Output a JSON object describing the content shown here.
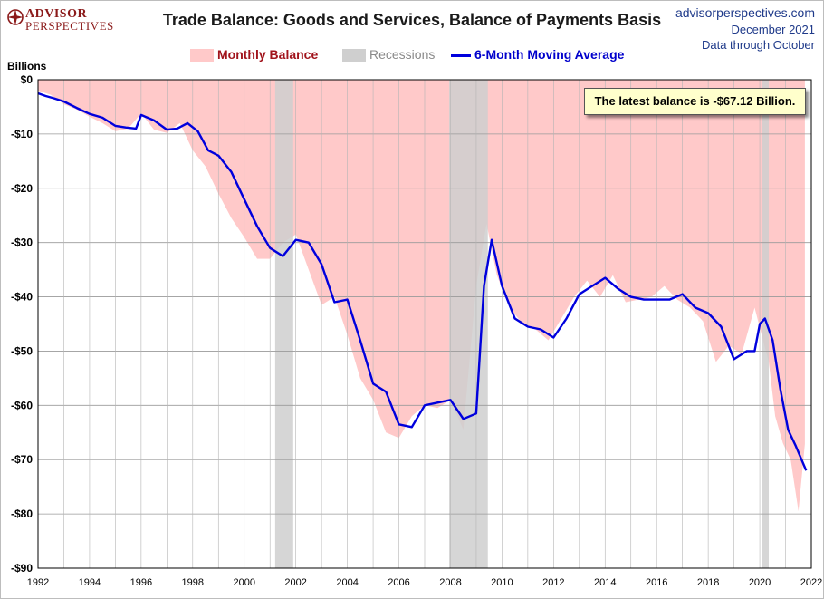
{
  "header": {
    "logo_line1": "ADVISOR",
    "logo_line2": "PERSPECTIVES",
    "title": "Trade Balance: Goods and Services, Balance of Payments Basis",
    "site": "advisorperspectives.com",
    "date": "December 2021",
    "data_through": "Data through October"
  },
  "legend": {
    "monthly": "Monthly Balance",
    "recessions": "Recessions",
    "moving_average": "6-Month Moving Average"
  },
  "callout": "The latest balance is -$67.12 Billion.",
  "colors": {
    "monthly_fill": "#ffc9c9",
    "recession_fill": "#cfcfcf",
    "moving_average": "#0000dd",
    "title": "#1a1a1a",
    "header_blue": "#1f3a8a",
    "logo_red": "#8b1a1a"
  },
  "chart_data": {
    "type": "area",
    "ylabel": "Billions",
    "xlim": [
      1992,
      2022
    ],
    "ylim": [
      -90,
      0
    ],
    "yticks": [
      0,
      -10,
      -20,
      -30,
      -40,
      -50,
      -60,
      -70,
      -80,
      -90
    ],
    "ytick_labels": [
      "$0",
      "-$10",
      "-$20",
      "-$30",
      "-$40",
      "-$50",
      "-$60",
      "-$70",
      "-$80",
      "-$90"
    ],
    "xticks": [
      1992,
      1994,
      1996,
      1998,
      2000,
      2002,
      2004,
      2006,
      2008,
      2010,
      2012,
      2014,
      2016,
      2018,
      2020,
      2022
    ],
    "grid": true,
    "recessions": [
      [
        2001.2,
        2001.9
      ],
      [
        2007.95,
        2009.45
      ],
      [
        2020.1,
        2020.35
      ]
    ],
    "series": [
      {
        "name": "Monthly Balance",
        "x": [
          1992.0,
          1992.5,
          1993.0,
          1993.5,
          1994.0,
          1994.5,
          1995.0,
          1995.5,
          1996.0,
          1996.5,
          1997.0,
          1997.5,
          1998.0,
          1998.5,
          1999.0,
          1999.5,
          2000.0,
          2000.5,
          2001.0,
          2001.5,
          2002.0,
          2002.5,
          2003.0,
          2003.5,
          2004.0,
          2004.5,
          2005.0,
          2005.5,
          2006.0,
          2006.5,
          2007.0,
          2007.5,
          2008.0,
          2008.5,
          2009.0,
          2009.4,
          2009.8,
          2010.3,
          2010.8,
          2011.3,
          2011.8,
          2012.3,
          2012.8,
          2013.3,
          2013.8,
          2014.3,
          2014.8,
          2015.3,
          2015.8,
          2016.3,
          2016.8,
          2017.3,
          2017.8,
          2018.3,
          2018.8,
          2019.3,
          2019.8,
          2020.1,
          2020.35,
          2020.6,
          2020.9,
          2021.2,
          2021.5,
          2021.75
        ],
        "values": [
          -2.0,
          -2.8,
          -4.5,
          -5.5,
          -6.8,
          -8.0,
          -9.5,
          -9.0,
          -6.2,
          -9.2,
          -9.8,
          -8.0,
          -13.0,
          -16.0,
          -21.0,
          -25.5,
          -29.0,
          -33.0,
          -33.0,
          -30.0,
          -28.5,
          -35.0,
          -41.5,
          -40.0,
          -47.0,
          -55.0,
          -59.0,
          -65.0,
          -66.0,
          -62.0,
          -60.0,
          -60.5,
          -59.0,
          -64.5,
          -38.0,
          -26.5,
          -36.0,
          -42.0,
          -45.0,
          -46.0,
          -48.0,
          -44.0,
          -40.0,
          -37.0,
          -40.0,
          -36.0,
          -41.0,
          -40.5,
          -40.0,
          -38.0,
          -40.5,
          -42.0,
          -44.5,
          -52.0,
          -49.0,
          -50.5,
          -42.0,
          -47.5,
          -52.0,
          -62.0,
          -67.0,
          -70.0,
          -79.5,
          -67.12
        ]
      },
      {
        "name": "6-Month Moving Average",
        "x": [
          1992.0,
          1992.3,
          1992.6,
          1993.0,
          1993.5,
          1994.0,
          1994.5,
          1995.0,
          1995.4,
          1995.8,
          1996.0,
          1996.5,
          1997.0,
          1997.4,
          1997.8,
          1998.2,
          1998.6,
          1999.0,
          1999.5,
          2000.0,
          2000.5,
          2001.0,
          2001.5,
          2002.0,
          2002.5,
          2003.0,
          2003.5,
          2004.0,
          2004.5,
          2005.0,
          2005.5,
          2006.0,
          2006.5,
          2007.0,
          2007.5,
          2008.0,
          2008.5,
          2009.0,
          2009.3,
          2009.6,
          2010.0,
          2010.5,
          2011.0,
          2011.5,
          2012.0,
          2012.5,
          2013.0,
          2013.5,
          2014.0,
          2014.5,
          2015.0,
          2015.5,
          2016.0,
          2016.5,
          2017.0,
          2017.5,
          2018.0,
          2018.5,
          2019.0,
          2019.5,
          2019.8,
          2020.0,
          2020.2,
          2020.5,
          2020.8,
          2021.1,
          2021.4,
          2021.8
        ],
        "values": [
          -2.5,
          -3.0,
          -3.4,
          -4.0,
          -5.2,
          -6.3,
          -7.0,
          -8.5,
          -8.8,
          -9.0,
          -6.5,
          -7.5,
          -9.2,
          -9.0,
          -8.0,
          -9.5,
          -13.0,
          -14.0,
          -17.0,
          -22.0,
          -27.0,
          -31.0,
          -32.5,
          -29.5,
          -30.0,
          -34.0,
          -41.0,
          -40.5,
          -48.0,
          -56.0,
          -57.5,
          -63.5,
          -64.0,
          -60.0,
          -59.5,
          -59.0,
          -62.5,
          -61.5,
          -38.0,
          -29.5,
          -38.0,
          -44.0,
          -45.5,
          -46.0,
          -47.5,
          -44.0,
          -39.5,
          -38.0,
          -36.5,
          -38.5,
          -40.0,
          -40.5,
          -40.5,
          -40.5,
          -39.5,
          -42.0,
          -43.0,
          -45.5,
          -51.5,
          -50.0,
          -50.0,
          -45.0,
          -44.0,
          -48.0,
          -57.0,
          -64.5,
          -67.5,
          -72.0
        ]
      }
    ]
  }
}
